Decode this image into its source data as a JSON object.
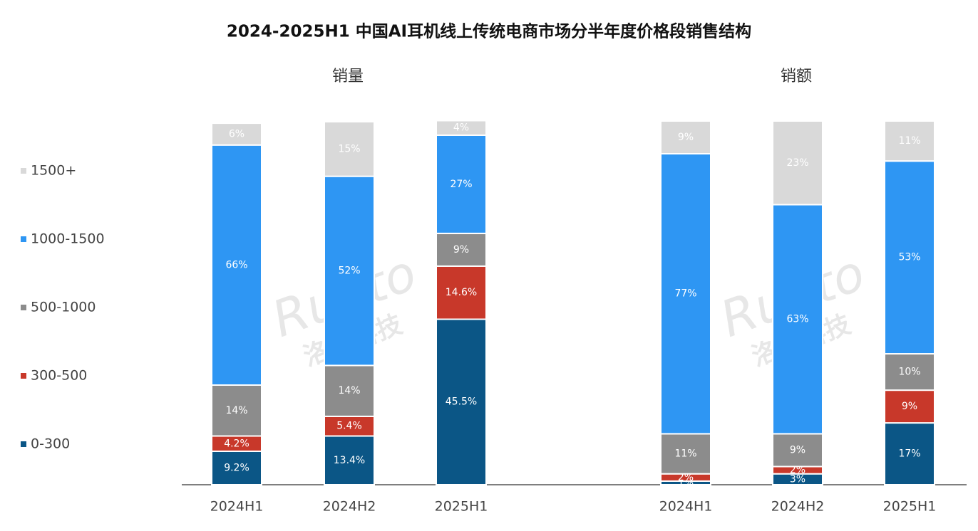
{
  "title": "2024-2025H1 中国AI耳机线上传统电商市场分半年度价格段销售结构",
  "watermark": [
    "Runto",
    "洛图科技"
  ],
  "legend": {
    "names": [
      "0-300",
      "300-500",
      "500-1000",
      "1000-1500",
      "1500+"
    ],
    "colors": [
      "#0b5686",
      "#c8382a",
      "#8c8c8c",
      "#2e96f3",
      "#d9d9d9"
    ]
  },
  "chart_data": [
    {
      "type": "stacked-bar",
      "subtitle": "销量",
      "categories": [
        "2024H1",
        "2024H2",
        "2025H1"
      ],
      "ylim": [
        0,
        100
      ],
      "series": [
        {
          "values": [
            9.2,
            13.4,
            45.5
          ],
          "value_labels": [
            "9.2%",
            "13.4%",
            "45.5%"
          ]
        },
        {
          "values": [
            4.2,
            5.4,
            14.6
          ],
          "value_labels": [
            "4.2%",
            "5.4%",
            "14.6%"
          ]
        },
        {
          "values": [
            14,
            14,
            9
          ],
          "value_labels": [
            "14%",
            "14%",
            "9%"
          ]
        },
        {
          "values": [
            66,
            52,
            27
          ],
          "value_labels": [
            "66%",
            "52%",
            "27%"
          ]
        },
        {
          "values": [
            6,
            15,
            4
          ],
          "value_labels": [
            "6%",
            "15%",
            "4%"
          ]
        }
      ]
    },
    {
      "type": "stacked-bar",
      "subtitle": "销额",
      "categories": [
        "2024H1",
        "2024H2",
        "2025H1"
      ],
      "ylim": [
        0,
        100
      ],
      "series": [
        {
          "values": [
            1,
            3,
            17
          ],
          "value_labels": [
            "1%",
            "3%",
            "17%"
          ]
        },
        {
          "values": [
            2,
            2,
            9
          ],
          "value_labels": [
            "2%",
            "2%",
            "9%"
          ]
        },
        {
          "values": [
            11,
            9,
            10
          ],
          "value_labels": [
            "11%",
            "9%",
            "10%"
          ]
        },
        {
          "values": [
            77,
            63,
            53
          ],
          "value_labels": [
            "77%",
            "63%",
            "53%"
          ]
        },
        {
          "values": [
            9,
            23,
            11
          ],
          "value_labels": [
            "9%",
            "23%",
            "11%"
          ]
        }
      ]
    }
  ]
}
